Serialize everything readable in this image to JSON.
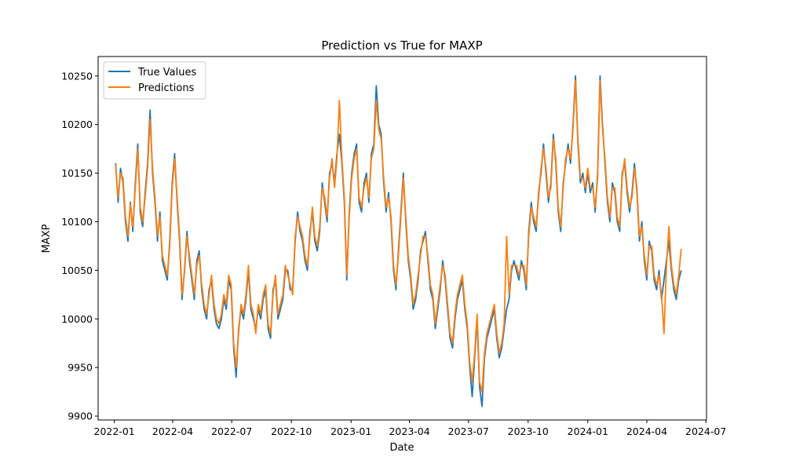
{
  "chart_data": {
    "type": "line",
    "title": "Prediction vs True for MAXP",
    "xlabel": "Date",
    "ylabel": "MAXP",
    "x_range": [
      "2021-12-07",
      "2024-07-02"
    ],
    "ylim": [
      9896,
      10270
    ],
    "x_ticks": [
      "2022-01",
      "2022-04",
      "2022-07",
      "2022-10",
      "2023-01",
      "2023-04",
      "2023-07",
      "2023-10",
      "2024-01",
      "2024-04",
      "2024-07"
    ],
    "y_ticks": [
      9900,
      9950,
      10000,
      10050,
      10100,
      10150,
      10200,
      10250
    ],
    "legend_position": "upper-left",
    "grid": false,
    "x_start": "2022-01-03",
    "x_end": "2024-05-24",
    "series": [
      {
        "name": "True Values",
        "color": "#1f77b4",
        "values": [
          10160,
          10120,
          10155,
          10140,
          10100,
          10080,
          10120,
          10090,
          10140,
          10180,
          10110,
          10095,
          10130,
          10160,
          10215,
          10150,
          10120,
          10080,
          10110,
          10060,
          10050,
          10040,
          10080,
          10140,
          10170,
          10120,
          10080,
          10020,
          10050,
          10090,
          10060,
          10040,
          10020,
          10060,
          10070,
          10030,
          10010,
          10000,
          10030,
          10040,
          10010,
          9995,
          9990,
          10000,
          10020,
          10010,
          10040,
          10030,
          9970,
          9940,
          9990,
          10010,
          10000,
          10020,
          10050,
          10010,
          10000,
          9990,
          10010,
          10000,
          10020,
          10030,
          9990,
          9980,
          10030,
          10040,
          10000,
          10010,
          10020,
          10050,
          10050,
          10030,
          10030,
          10080,
          10110,
          10090,
          10080,
          10060,
          10050,
          10090,
          10110,
          10080,
          10070,
          10090,
          10140,
          10120,
          10100,
          10150,
          10160,
          10140,
          10170,
          10190,
          10160,
          10120,
          10040,
          10110,
          10150,
          10170,
          10180,
          10120,
          10110,
          10140,
          10150,
          10120,
          10170,
          10180,
          10240,
          10200,
          10190,
          10140,
          10110,
          10130,
          10100,
          10050,
          10030,
          10070,
          10110,
          10150,
          10100,
          10060,
          10040,
          10010,
          10020,
          10040,
          10070,
          10080,
          10090,
          10060,
          10030,
          10020,
          9990,
          10010,
          10030,
          10060,
          10040,
          10010,
          9980,
          9970,
          10000,
          10020,
          10030,
          10040,
          10010,
          9990,
          9950,
          9920,
          9960,
          10000,
          9930,
          9910,
          9960,
          9980,
          9990,
          10000,
          10010,
          9980,
          9960,
          9970,
          9990,
          10010,
          10020,
          10050,
          10060,
          10050,
          10040,
          10060,
          10050,
          10030,
          10090,
          10120,
          10100,
          10090,
          10130,
          10150,
          10180,
          10150,
          10120,
          10140,
          10190,
          10160,
          10110,
          10090,
          10140,
          10160,
          10180,
          10160,
          10200,
          10250,
          10180,
          10140,
          10150,
          10130,
          10150,
          10130,
          10140,
          10110,
          10150,
          10250,
          10200,
          10160,
          10120,
          10100,
          10140,
          10130,
          10100,
          10090,
          10150,
          10160,
          10130,
          10110,
          10130,
          10160,
          10130,
          10080,
          10100,
          10060,
          10040,
          10080,
          10070,
          10040,
          10030,
          10050,
          10020,
          10040,
          10060,
          10080,
          10050,
          10030,
          10020,
          10040,
          10050
        ]
      },
      {
        "name": "Predictions",
        "color": "#ff7f0e",
        "values": [
          10158,
          10125,
          10150,
          10145,
          10105,
          10085,
          10118,
          10095,
          10135,
          10175,
          10115,
          10100,
          10125,
          10155,
          10205,
          10155,
          10125,
          10085,
          10105,
          10065,
          10055,
          10045,
          10075,
          10135,
          10165,
          10125,
          10085,
          10025,
          10048,
          10085,
          10065,
          10045,
          10025,
          10055,
          10065,
          10035,
          10015,
          10005,
          10025,
          10045,
          10015,
          10000,
          9995,
          10005,
          10025,
          10015,
          10045,
          10035,
          9975,
          9950,
          9985,
          10015,
          10005,
          10025,
          10055,
          10015,
          10005,
          9985,
          10015,
          10005,
          10025,
          10035,
          9995,
          9985,
          10025,
          10045,
          10005,
          10015,
          10025,
          10055,
          10045,
          10035,
          10025,
          10085,
          10105,
          10095,
          10085,
          10065,
          10055,
          10085,
          10115,
          10085,
          10075,
          10095,
          10135,
          10125,
          10105,
          10145,
          10165,
          10135,
          10165,
          10225,
          10165,
          10125,
          10045,
          10105,
          10145,
          10165,
          10175,
          10125,
          10115,
          10135,
          10145,
          10125,
          10165,
          10175,
          10225,
          10195,
          10185,
          10145,
          10115,
          10125,
          10105,
          10055,
          10035,
          10065,
          10105,
          10145,
          10105,
          10065,
          10045,
          10015,
          10025,
          10045,
          10065,
          10085,
          10085,
          10065,
          10035,
          10025,
          9995,
          10015,
          10035,
          10055,
          10045,
          10015,
          9985,
          9975,
          10005,
          10025,
          10035,
          10045,
          10015,
          9995,
          9955,
          9935,
          9965,
          10005,
          9935,
          9925,
          9965,
          9985,
          9995,
          10005,
          10015,
          9985,
          9965,
          9975,
          9995,
          10085,
          10025,
          10055,
          10055,
          10055,
          10045,
          10055,
          10055,
          10035,
          10085,
          10115,
          10105,
          10095,
          10125,
          10155,
          10175,
          10155,
          10125,
          10135,
          10185,
          10165,
          10115,
          10095,
          10135,
          10165,
          10175,
          10165,
          10195,
          10245,
          10185,
          10145,
          10145,
          10135,
          10155,
          10135,
          10135,
          10115,
          10145,
          10245,
          10195,
          10165,
          10125,
          10105,
          10135,
          10135,
          10105,
          10095,
          10145,
          10165,
          10135,
          10115,
          10125,
          10155,
          10135,
          10085,
          10095,
          10065,
          10045,
          10075,
          10075,
          10045,
          10035,
          10045,
          10025,
          9985,
          10055,
          10095,
          10055,
          10035,
          10025,
          10045,
          10072
        ]
      }
    ]
  }
}
